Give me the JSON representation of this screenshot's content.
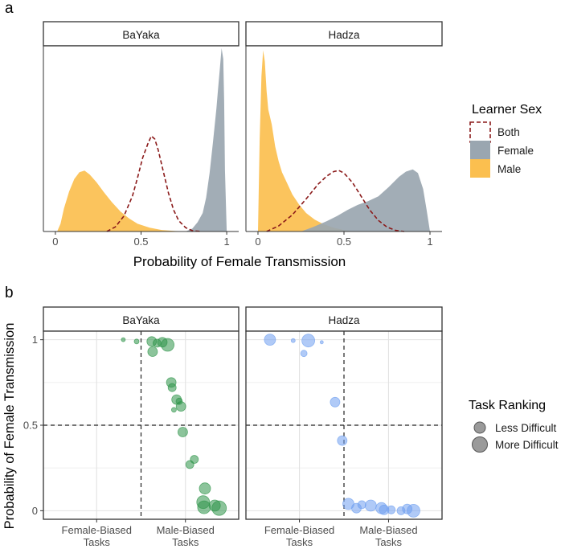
{
  "chart_data": [
    {
      "panel_letter": "a",
      "type": "area",
      "title": "",
      "xlabel": "Probability of Female Transmission",
      "ylabel": "",
      "xlim": [
        -0.07,
        1.07
      ],
      "x_ticks": [
        0,
        0.5,
        1
      ],
      "x_tick_labels": [
        "0",
        "0.5",
        "1"
      ],
      "grid": false,
      "legend_title": "Learner Sex",
      "legend_items": [
        {
          "label": "Both",
          "style": "dashed-outline",
          "color": "#8b1a1a"
        },
        {
          "label": "Female",
          "style": "fill",
          "color": "#9aa6b0"
        },
        {
          "label": "Male",
          "style": "fill",
          "color": "#fbbf4f"
        }
      ],
      "facets": [
        {
          "name": "BaYaka",
          "ymax": 12.0,
          "series": [
            {
              "name": "Male",
              "x": [
                0.01,
                0.03,
                0.05,
                0.08,
                0.11,
                0.14,
                0.17,
                0.2,
                0.24,
                0.28,
                0.33,
                0.38,
                0.43,
                0.48,
                0.55,
                0.62,
                0.7,
                0.8
              ],
              "y": [
                0,
                0.5,
                1.5,
                2.6,
                3.4,
                3.85,
                3.95,
                3.7,
                3.2,
                2.6,
                1.9,
                1.3,
                0.85,
                0.5,
                0.25,
                0.1,
                0.03,
                0
              ]
            },
            {
              "name": "Female",
              "x": [
                0.76,
                0.8,
                0.83,
                0.86,
                0.88,
                0.9,
                0.92,
                0.94,
                0.95,
                0.96,
                0.97,
                0.98,
                0.985,
                0.99,
                1.0
              ],
              "y": [
                0,
                0.2,
                0.6,
                1.2,
                2.2,
                3.8,
                5.8,
                8.0,
                9.3,
                10.6,
                11.9,
                11.2,
                8.5,
                4.0,
                0
              ]
            },
            {
              "name": "Both",
              "x": [
                0.3,
                0.35,
                0.4,
                0.45,
                0.48,
                0.51,
                0.54,
                0.56,
                0.58,
                0.6,
                0.63,
                0.66,
                0.69,
                0.72,
                0.76,
                0.8,
                0.85
              ],
              "y": [
                0,
                0.3,
                1.0,
                2.3,
                3.5,
                4.8,
                5.7,
                6.2,
                6.0,
                5.3,
                3.9,
                2.5,
                1.4,
                0.7,
                0.25,
                0.05,
                0
              ]
            }
          ]
        },
        {
          "name": "Hadza",
          "ymax": 5.0,
          "series": [
            {
              "name": "Male",
              "x": [
                0.0,
                0.01,
                0.02,
                0.03,
                0.04,
                0.05,
                0.06,
                0.08,
                0.1,
                0.12,
                0.14,
                0.17,
                0.2,
                0.24,
                0.28,
                0.33,
                0.38,
                0.44,
                0.5,
                0.56
              ],
              "y": [
                0,
                2.5,
                4.2,
                4.9,
                4.6,
                3.8,
                3.3,
                2.9,
                2.3,
                1.9,
                1.6,
                1.3,
                1.0,
                0.72,
                0.5,
                0.32,
                0.2,
                0.1,
                0.04,
                0
              ]
            },
            {
              "name": "Female",
              "x": [
                0.25,
                0.32,
                0.4,
                0.46,
                0.52,
                0.58,
                0.64,
                0.7,
                0.76,
                0.82,
                0.86,
                0.9,
                0.93,
                0.96,
                0.98,
                1.0
              ],
              "y": [
                0,
                0.12,
                0.28,
                0.42,
                0.58,
                0.72,
                0.82,
                0.95,
                1.2,
                1.48,
                1.62,
                1.68,
                1.58,
                1.15,
                0.6,
                0
              ]
            },
            {
              "name": "Both",
              "x": [
                0.05,
                0.12,
                0.2,
                0.28,
                0.35,
                0.4,
                0.44,
                0.47,
                0.5,
                0.55,
                0.6,
                0.65,
                0.7,
                0.75,
                0.8,
                0.85
              ],
              "y": [
                0,
                0.15,
                0.45,
                0.88,
                1.28,
                1.5,
                1.62,
                1.65,
                1.58,
                1.32,
                0.95,
                0.58,
                0.3,
                0.12,
                0.03,
                0
              ]
            }
          ]
        }
      ]
    },
    {
      "panel_letter": "b",
      "type": "scatter",
      "title": "",
      "xlabel": "",
      "ylabel": "Probability of Female Transmission",
      "ylim": [
        -0.05,
        1.05
      ],
      "y_ticks": [
        0,
        0.5,
        1
      ],
      "y_tick_labels": [
        "0",
        "0.5",
        "1"
      ],
      "x_categories": [
        "Female-Biased\nTasks",
        "Male-Biased\nTasks"
      ],
      "x_category_lines": [
        [
          "Female-Biased",
          "Tasks"
        ],
        [
          "Male-Biased",
          "Tasks"
        ]
      ],
      "reference_lines": {
        "horizontal": 0.5,
        "vertical_between_categories": true
      },
      "grid": true,
      "legend_title": "Task Ranking",
      "legend_items": [
        {
          "label": "Less Difficult",
          "size": "small"
        },
        {
          "label": "More Difficult",
          "size": "large"
        }
      ],
      "facets": [
        {
          "name": "BaYaka",
          "color": "#2e9449",
          "points": [
            {
              "x": 1.3,
              "y": 1.0,
              "r": 2.5
            },
            {
              "x": 1.45,
              "y": 0.99,
              "r": 3
            },
            {
              "x": 1.62,
              "y": 0.99,
              "r": 6
            },
            {
              "x": 1.63,
              "y": 0.93,
              "r": 6
            },
            {
              "x": 1.68,
              "y": 0.98,
              "r": 5
            },
            {
              "x": 1.74,
              "y": 0.985,
              "r": 6
            },
            {
              "x": 1.8,
              "y": 0.97,
              "r": 8
            },
            {
              "x": 1.84,
              "y": 0.75,
              "r": 6
            },
            {
              "x": 1.85,
              "y": 0.72,
              "r": 5
            },
            {
              "x": 1.87,
              "y": 0.59,
              "r": 3
            },
            {
              "x": 1.9,
              "y": 0.65,
              "r": 6
            },
            {
              "x": 1.93,
              "y": 0.64,
              "r": 4
            },
            {
              "x": 1.95,
              "y": 0.61,
              "r": 6
            },
            {
              "x": 1.97,
              "y": 0.46,
              "r": 6
            },
            {
              "x": 2.05,
              "y": 0.27,
              "r": 5
            },
            {
              "x": 2.1,
              "y": 0.3,
              "r": 5
            },
            {
              "x": 2.22,
              "y": 0.13,
              "r": 7
            },
            {
              "x": 2.2,
              "y": 0.05,
              "r": 8
            },
            {
              "x": 2.21,
              "y": 0.02,
              "r": 8
            },
            {
              "x": 2.33,
              "y": 0.03,
              "r": 7
            },
            {
              "x": 2.38,
              "y": 0.015,
              "r": 9
            }
          ]
        },
        {
          "name": "Hadza",
          "color": "#6f9ff0",
          "points": [
            {
              "x": 0.67,
              "y": 1.0,
              "r": 7
            },
            {
              "x": 0.93,
              "y": 0.995,
              "r": 2.5
            },
            {
              "x": 1.05,
              "y": 0.92,
              "r": 4
            },
            {
              "x": 1.1,
              "y": 0.995,
              "r": 8
            },
            {
              "x": 1.25,
              "y": 0.985,
              "r": 2
            },
            {
              "x": 1.4,
              "y": 0.635,
              "r": 6
            },
            {
              "x": 1.48,
              "y": 0.41,
              "r": 6
            },
            {
              "x": 1.55,
              "y": 0.04,
              "r": 7
            },
            {
              "x": 1.64,
              "y": 0.015,
              "r": 6
            },
            {
              "x": 1.7,
              "y": 0.035,
              "r": 5
            },
            {
              "x": 1.8,
              "y": 0.03,
              "r": 7
            },
            {
              "x": 1.92,
              "y": 0.015,
              "r": 7
            },
            {
              "x": 1.95,
              "y": 0.005,
              "r": 6
            },
            {
              "x": 2.03,
              "y": 0.005,
              "r": 5
            },
            {
              "x": 2.14,
              "y": 0.0,
              "r": 5
            },
            {
              "x": 2.21,
              "y": 0.01,
              "r": 6
            },
            {
              "x": 2.28,
              "y": 0.0,
              "r": 8
            }
          ]
        }
      ]
    }
  ]
}
